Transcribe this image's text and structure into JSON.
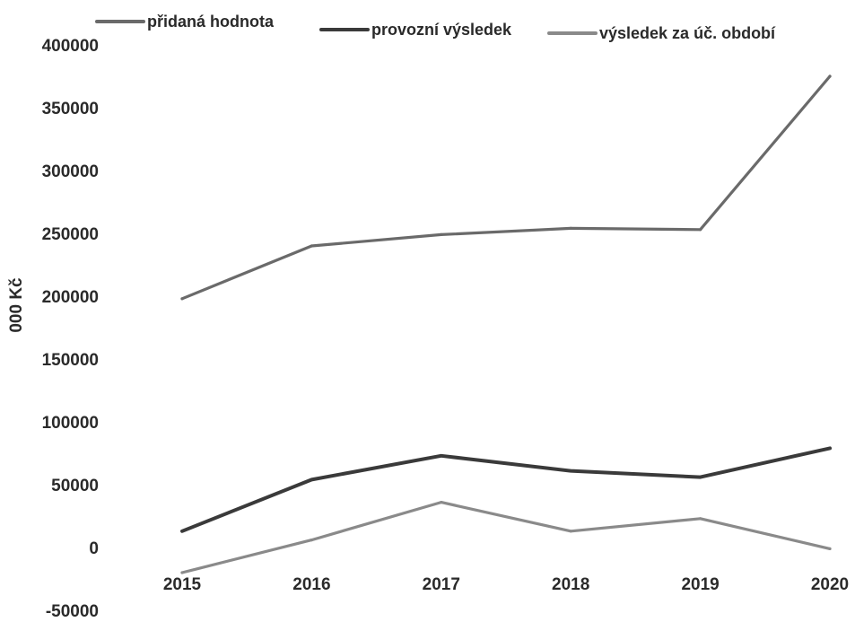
{
  "chart_data": {
    "type": "line",
    "categories": [
      "2015",
      "2016",
      "2017",
      "2018",
      "2019",
      "2020"
    ],
    "series": [
      {
        "name": "přidaná hodnota",
        "values": [
          198000,
          240000,
          249000,
          254000,
          253000,
          375000
        ],
        "color": "#6a6a6a"
      },
      {
        "name": "provozní výsledek",
        "values": [
          13000,
          54000,
          73000,
          61000,
          56000,
          79000
        ],
        "color": "#3a3a3a"
      },
      {
        "name": "výsledek za úč. období",
        "values": [
          -20000,
          6000,
          36000,
          13000,
          23000,
          -1000
        ],
        "color": "#8a8a8a"
      }
    ],
    "yticks": [
      "400000",
      "350000",
      "300000",
      "250000",
      "200000",
      "150000",
      "100000",
      "50000",
      "0",
      "-50000"
    ],
    "ylabel": "000 Kč",
    "xlabel": "",
    "title": "",
    "ylim": [
      -50000,
      400000
    ],
    "grid": false,
    "legend_position": "top"
  }
}
